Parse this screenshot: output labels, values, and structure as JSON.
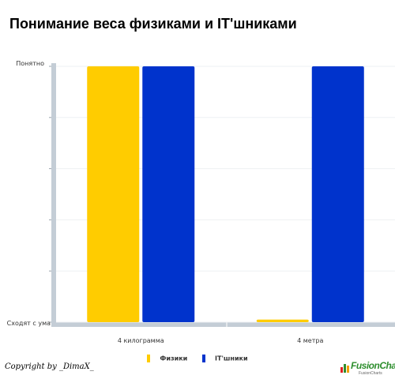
{
  "chart_data": {
    "type": "bar",
    "title": "Понимание веса физиками и IT'шниками",
    "categories": [
      "4 килограмма",
      "4 метра"
    ],
    "series": [
      {
        "name": "Физики",
        "values": [
          1,
          0.01
        ],
        "color": "#ffcc00"
      },
      {
        "name": "IT'шники",
        "values": [
          1,
          1
        ],
        "color": "#0033cc"
      }
    ],
    "y_tick_labels": {
      "top": "Понятно",
      "bottom": "Сходят с ума"
    },
    "ylim": [
      0,
      1
    ],
    "grid": true,
    "legend_placement": "bottom"
  },
  "copyright": "Copyright by _DimaX_",
  "logo": {
    "name": "FusionCharts",
    "text": "FusionCharts",
    "subtext": "FusionCharts"
  }
}
